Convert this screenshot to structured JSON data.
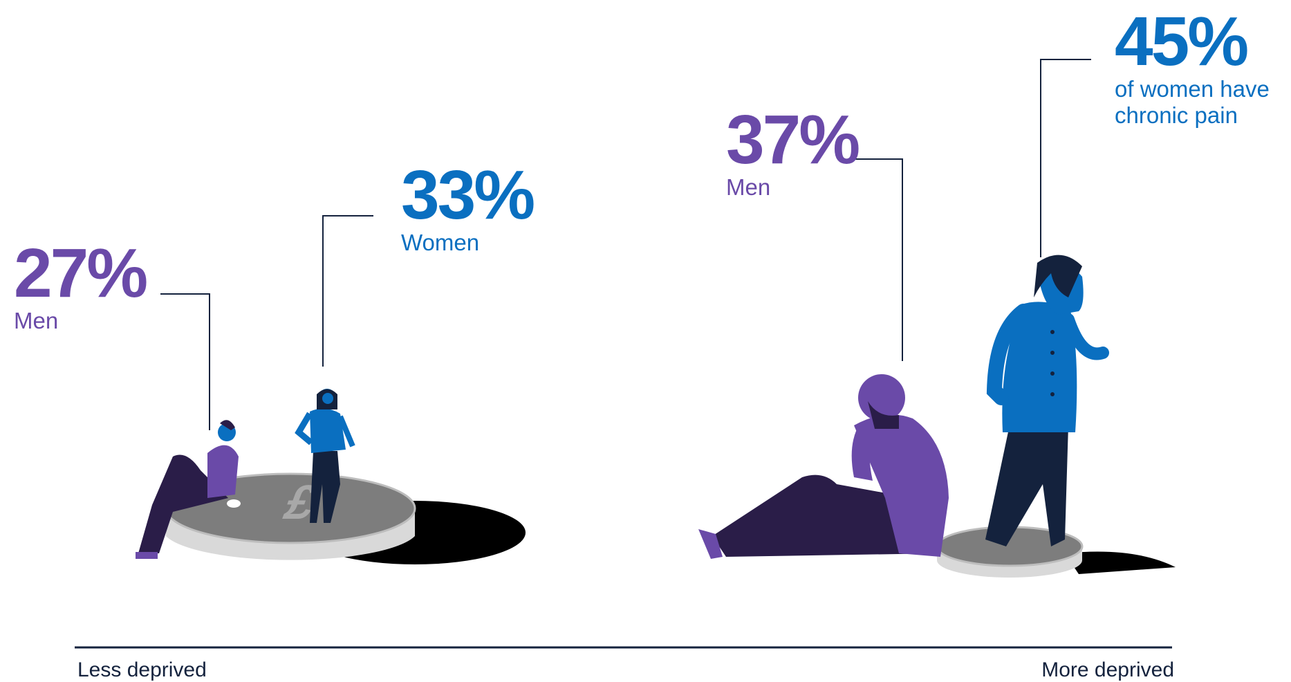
{
  "stats": {
    "men_less": {
      "value": "27%",
      "label": "Men"
    },
    "women_less": {
      "value": "33%",
      "label": "Women"
    },
    "men_more": {
      "value": "37%",
      "label": "Men"
    },
    "women_more": {
      "value": "45%",
      "label_line1": "of women have",
      "label_line2": "chronic pain"
    }
  },
  "axis": {
    "left_label": "Less deprived",
    "right_label": "More deprived"
  },
  "colors": {
    "purple": "#6a4aa8",
    "blue": "#0a6fc0",
    "navy": "#14223d"
  },
  "icons": [
    "pound-coin-icon",
    "seated-man-icon",
    "standing-woman-icon"
  ]
}
